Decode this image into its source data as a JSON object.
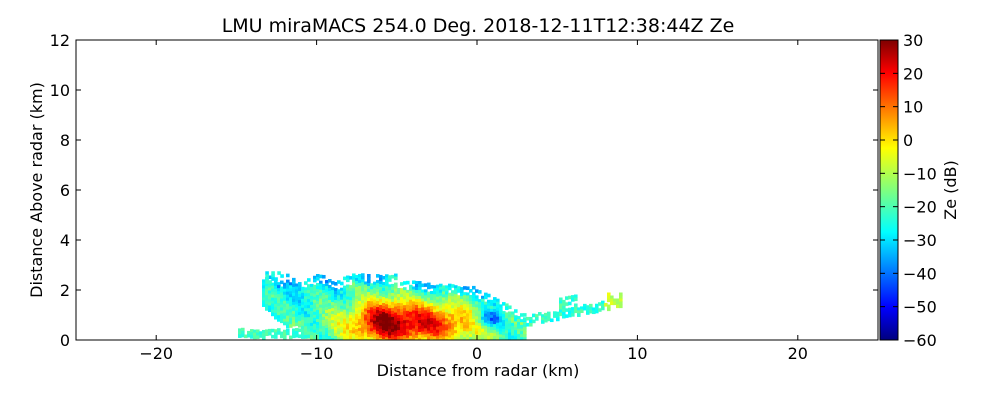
{
  "chart_data": {
    "type": "heatmap",
    "title": "LMU miraMACS 254.0 Deg. 2018-12-11T12:38:44Z  Ze",
    "xlabel": "Distance from radar (km)",
    "ylabel": "Distance Above radar  (km)",
    "xlim": [
      -25,
      25
    ],
    "ylim": [
      0,
      12
    ],
    "x_ticks": [
      -20,
      -10,
      0,
      10,
      20
    ],
    "x_tick_labels": [
      "−20",
      "−10",
      "0",
      "10",
      "20"
    ],
    "y_ticks": [
      0,
      2,
      4,
      6,
      8,
      10,
      12
    ],
    "y_tick_labels": [
      "0",
      "2",
      "4",
      "6",
      "8",
      "10",
      "12"
    ],
    "colorbar": {
      "label": "Ze (dB)",
      "range": [
        -60,
        30
      ],
      "ticks": [
        30,
        20,
        10,
        0,
        -10,
        -20,
        -30,
        -40,
        -50,
        -60
      ],
      "tick_labels": [
        "30",
        "20",
        "10",
        "0",
        "−10",
        "−20",
        "−30",
        "−40",
        "−50",
        "−60"
      ],
      "colormap": "jet"
    },
    "cloud_regions": [
      {
        "name": "main-echo-outer",
        "description_dbz": -25,
        "x_range_km": [
          -13.5,
          3
        ],
        "top_km": [
          2.2,
          2.7
        ],
        "base_km": 0
      },
      {
        "name": "core-heavy",
        "dbz": 25,
        "x_center_km": -6,
        "height_center_km": 0.9,
        "x_half_width_km": 1.5,
        "height_half_km": 1.0
      },
      {
        "name": "core-moderate",
        "dbz": 12,
        "x_center_km": -4,
        "height_center_km": 0.7,
        "x_half_width_km": 4.5,
        "height_half_km": 0.9
      },
      {
        "name": "near-radar-weak",
        "dbz": -48,
        "x_center_km": 0.7,
        "height_center_km": 0.9,
        "x_half_width_km": 0.9,
        "height_half_km": 0.35
      },
      {
        "name": "far-echo-tail",
        "dbz": -22,
        "x_range_km": [
          2,
          9
        ],
        "top_km": [
          0.9,
          1.9
        ]
      },
      {
        "name": "ground-strip",
        "dbz": -25,
        "x_range_km": [
          -15,
          -10
        ],
        "top_km": [
          0.4,
          0.5
        ]
      }
    ]
  }
}
